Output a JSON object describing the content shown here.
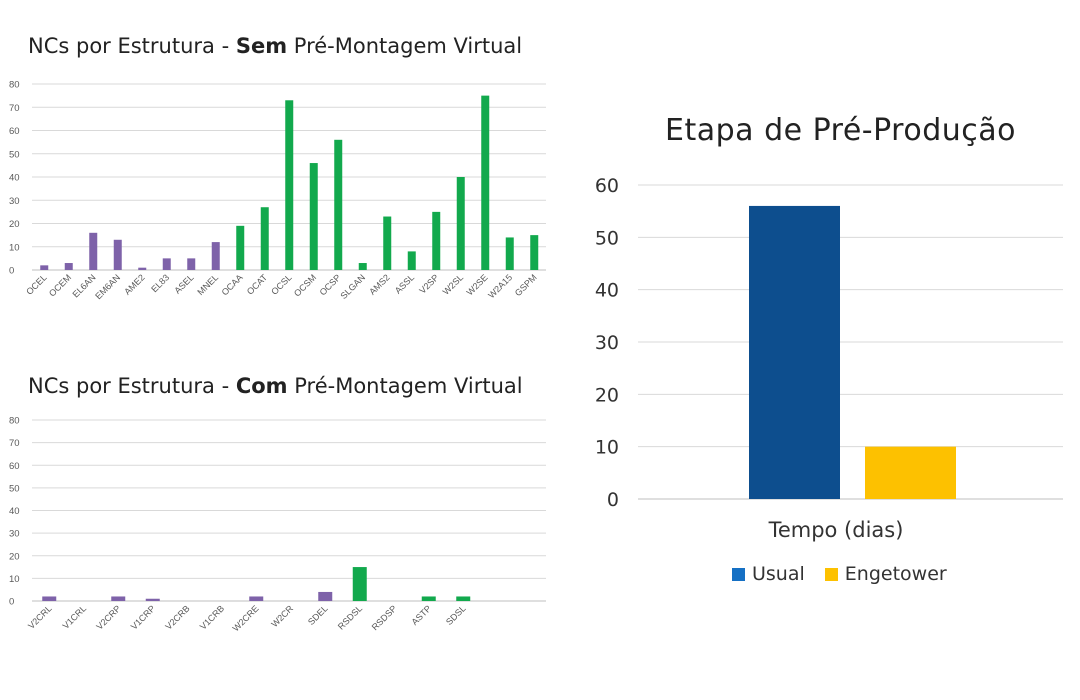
{
  "colors": {
    "purple": "#7e62a9",
    "green": "#12a94d",
    "navy": "#0d4e8e",
    "gold": "#fdc100",
    "legend_blue": "#1570c4"
  },
  "chart1": {
    "title_pre": "NCs por Estrutura - ",
    "title_bold": "Sem",
    "title_post": " Pré-Montagem Virtual"
  },
  "chart2": {
    "title_pre": "NCs por Estrutura - ",
    "title_bold": "Com",
    "title_post": " Pré-Montagem Virtual"
  },
  "chart3": {
    "title": "Etapa de Pré-Produção"
  },
  "chart_data": [
    {
      "type": "bar",
      "title": "NCs por Estrutura - Sem Pré-Montagem Virtual",
      "categories": [
        "OCEL",
        "OCEM",
        "EL6AN",
        "EM6AN",
        "AME2",
        "EL83",
        "ASEL",
        "MNEL",
        "OCAA",
        "OCAT",
        "OCSL",
        "OCSM",
        "OCSP",
        "SLGAN",
        "AMS2",
        "ASSL",
        "V2SP",
        "W2SL",
        "W2SE",
        "W2A15",
        "GSPM"
      ],
      "values": [
        2,
        3,
        16,
        13,
        1,
        5,
        5,
        12,
        19,
        27,
        73,
        46,
        56,
        3,
        23,
        8,
        25,
        40,
        75,
        14,
        15
      ],
      "bar_colors": [
        "purple",
        "purple",
        "purple",
        "purple",
        "purple",
        "purple",
        "purple",
        "purple",
        "green",
        "green",
        "green",
        "green",
        "green",
        "green",
        "green",
        "green",
        "green",
        "green",
        "green",
        "green",
        "green"
      ],
      "ylim": [
        0,
        80
      ],
      "yticks": [
        0,
        10,
        20,
        30,
        40,
        50,
        60,
        70,
        80
      ],
      "grid": true
    },
    {
      "type": "bar",
      "title": "NCs por Estrutura - Com Pré-Montagem Virtual",
      "categories": [
        "V2CRL",
        "V1CRL",
        "V2CRP",
        "V1CRP",
        "V2CRB",
        "V1CRB",
        "W2CRE",
        "W2CR",
        "SDEL",
        "RSDSL",
        "RSDSP",
        "ASTP",
        "SDSL",
        ""
      ],
      "values": [
        2,
        0,
        2,
        1,
        0,
        0,
        2,
        0,
        4,
        15,
        0,
        2,
        2,
        0
      ],
      "bar_colors": [
        "purple",
        "purple",
        "purple",
        "purple",
        "purple",
        "purple",
        "purple",
        "purple",
        "purple",
        "green",
        "green",
        "green",
        "green",
        "green"
      ],
      "ylim": [
        0,
        80
      ],
      "yticks": [
        0,
        10,
        20,
        30,
        40,
        50,
        60,
        70,
        80
      ],
      "grid": true
    },
    {
      "type": "bar",
      "title": "Etapa de Pré-Produção",
      "categories": [
        "Tempo (dias)"
      ],
      "series": [
        {
          "name": "Usual",
          "values": [
            56
          ]
        },
        {
          "name": "Engetower",
          "values": [
            10
          ]
        }
      ],
      "ylim": [
        0,
        60
      ],
      "yticks": [
        0,
        10,
        20,
        30,
        40,
        50,
        60
      ],
      "grid": true,
      "legend_position": "bottom"
    }
  ]
}
